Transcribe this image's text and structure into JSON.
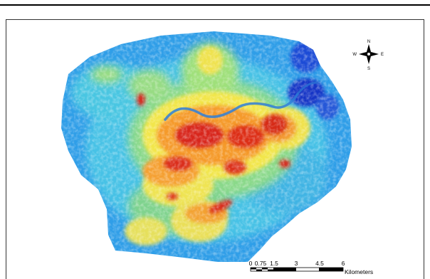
{
  "compass": {
    "north": "N",
    "south": "S",
    "east": "E",
    "west": "W"
  },
  "scale_bar": {
    "tick_labels": [
      "0",
      "0.75",
      "1.5",
      "3",
      "4.5",
      "6"
    ],
    "unit": "Kilometers"
  },
  "colors": {
    "low": "#1e90ff",
    "mid_low": "#41b8e8",
    "mid": "#8fe07a",
    "mid_high": "#f5e84a",
    "high": "#f08a24",
    "very_high": "#d41e0e",
    "water": "#1436c8"
  }
}
